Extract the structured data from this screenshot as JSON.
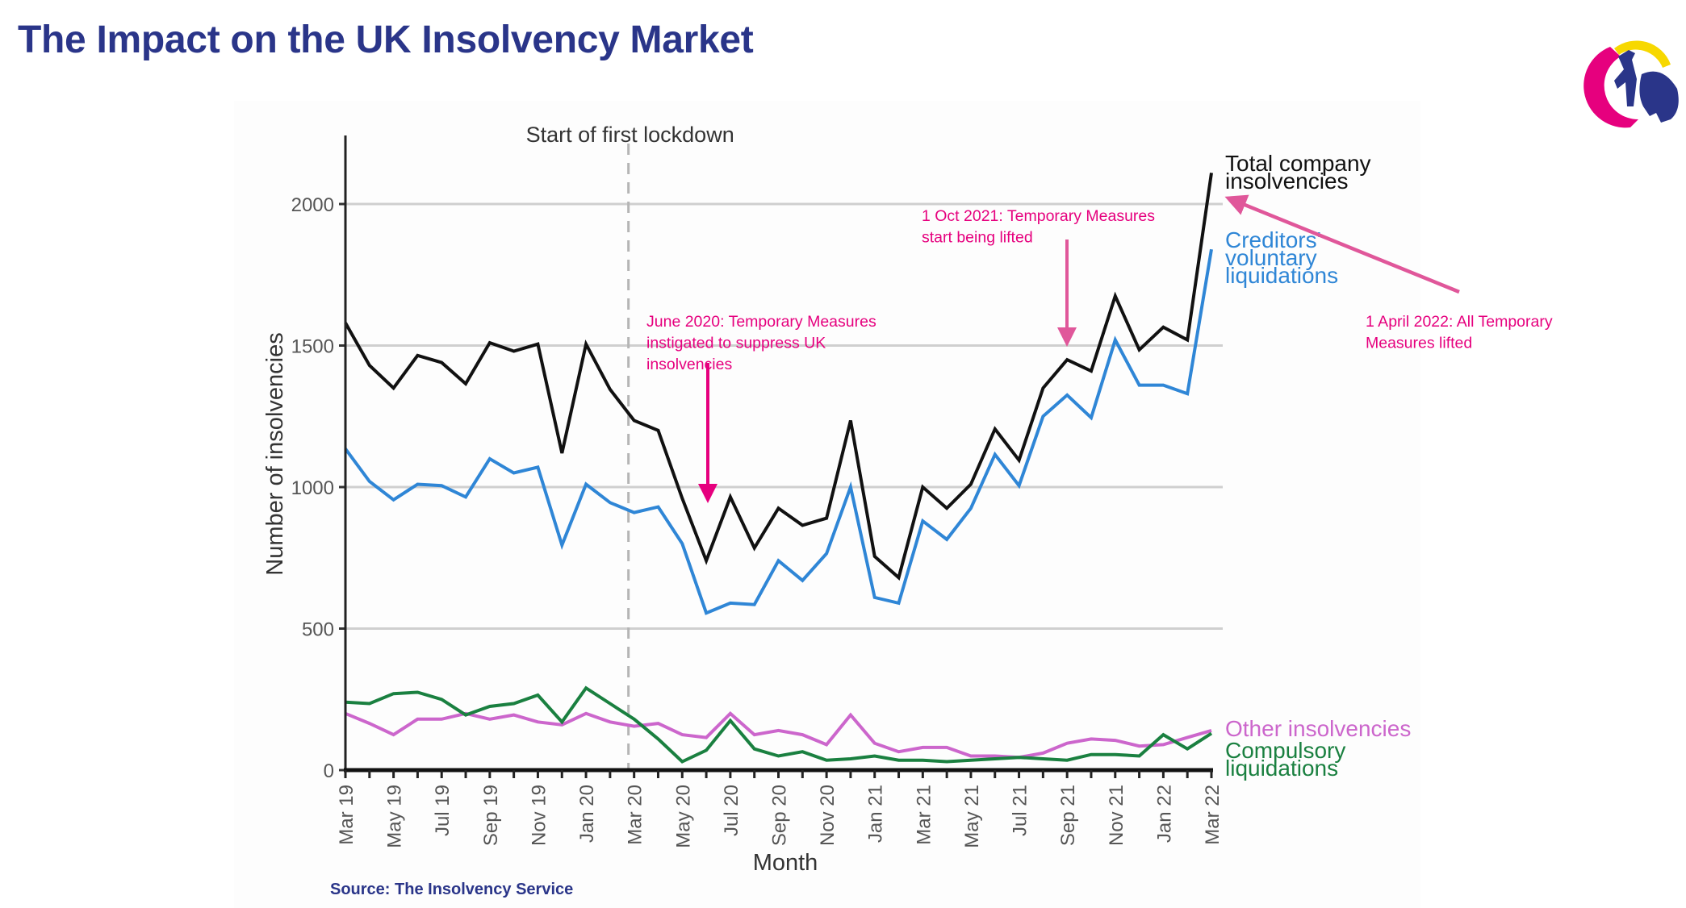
{
  "page": {
    "title": "The Impact on the UK Insolvency Market",
    "source": "Source: The Insolvency Service",
    "logo": "matador-and-bull-logo",
    "colors": {
      "title": "#2a3589",
      "annotation": "#e6007e",
      "annotation_arrow_light": "#e0579a"
    }
  },
  "chart_data": {
    "type": "line",
    "title": "",
    "xlabel": "Month",
    "ylabel": "Number of insolvencies",
    "ylim": [
      0,
      2250
    ],
    "yticks": [
      0,
      500,
      1000,
      1500,
      2000
    ],
    "grid": true,
    "x": [
      "Mar 19",
      "Apr 19",
      "May 19",
      "Jun 19",
      "Jul 19",
      "Aug 19",
      "Sep 19",
      "Oct 19",
      "Nov 19",
      "Dec 19",
      "Jan 20",
      "Feb 20",
      "Mar 20",
      "Apr 20",
      "May 20",
      "Jun 20",
      "Jul 20",
      "Aug 20",
      "Sep 20",
      "Oct 20",
      "Nov 20",
      "Dec 20",
      "Jan 21",
      "Feb 21",
      "Mar 21",
      "Apr 21",
      "May 21",
      "Jun 21",
      "Jul 21",
      "Aug 21",
      "Sep 21",
      "Oct 21",
      "Nov 21",
      "Dec 21",
      "Jan 22",
      "Feb 22",
      "Mar 22"
    ],
    "x_tick_labels": [
      "Mar 19",
      "May 19",
      "Jul 19",
      "Sep 19",
      "Nov 19",
      "Jan 20",
      "Mar 20",
      "May 20",
      "Jul 20",
      "Sep 20",
      "Nov 20",
      "Jan 21",
      "Mar 21",
      "May 21",
      "Jul 21",
      "Sep 21",
      "Nov 21",
      "Jan 22",
      "Mar 22"
    ],
    "series": [
      {
        "name": "Total company insolvencies",
        "label_lines": [
          "Total company",
          "insolvencies"
        ],
        "color": "#111111",
        "values": [
          1580,
          1430,
          1350,
          1465,
          1440,
          1365,
          1510,
          1480,
          1505,
          1120,
          1505,
          1345,
          1235,
          1200,
          960,
          740,
          965,
          785,
          925,
          865,
          890,
          1235,
          755,
          680,
          1000,
          925,
          1010,
          1205,
          1095,
          1350,
          1450,
          1410,
          1675,
          1485,
          1565,
          1520,
          2110
        ]
      },
      {
        "name": "Creditors' voluntary liquidations",
        "label_lines": [
          "Creditors'",
          "voluntary",
          "liquidations"
        ],
        "color": "#2f86d6",
        "values": [
          1135,
          1020,
          955,
          1010,
          1005,
          965,
          1100,
          1050,
          1070,
          795,
          1010,
          945,
          910,
          930,
          800,
          555,
          590,
          585,
          740,
          670,
          765,
          1000,
          610,
          590,
          880,
          815,
          925,
          1115,
          1005,
          1250,
          1325,
          1245,
          1520,
          1360,
          1360,
          1330,
          1840
        ]
      },
      {
        "name": "Other insolvencies",
        "label_lines": [
          "Other insolvencies"
        ],
        "color": "#cc66cc",
        "values": [
          200,
          165,
          125,
          180,
          180,
          200,
          180,
          195,
          170,
          160,
          200,
          170,
          155,
          165,
          125,
          115,
          200,
          125,
          140,
          125,
          90,
          195,
          95,
          65,
          80,
          80,
          50,
          50,
          45,
          60,
          95,
          110,
          105,
          85,
          90,
          115,
          140
        ]
      },
      {
        "name": "Compulsory liquidations",
        "label_lines": [
          "Compulsory",
          "liquidations"
        ],
        "color": "#1a8040",
        "values": [
          240,
          235,
          270,
          275,
          250,
          195,
          225,
          235,
          265,
          170,
          290,
          235,
          180,
          110,
          30,
          70,
          175,
          75,
          50,
          65,
          35,
          40,
          50,
          35,
          35,
          30,
          35,
          40,
          45,
          40,
          35,
          55,
          55,
          50,
          125,
          75,
          130
        ]
      }
    ],
    "reference_lines": [
      {
        "x": "Mar 20",
        "label": "Start of first lockdown",
        "style": "dashed",
        "color": "#aaaaaa"
      }
    ],
    "annotations": [
      {
        "id": "june-2020",
        "lines": [
          "June 2020: Temporary Measures",
          "instigated to suppress UK",
          "insolvencies"
        ],
        "points_to": "Jun 20",
        "color": "#e6007e"
      },
      {
        "id": "oct-2021",
        "lines": [
          "1 Oct 2021: Temporary Measures",
          "start being lifted"
        ],
        "points_to": "Oct 21",
        "color": "#e6007e"
      },
      {
        "id": "apr-2022",
        "lines": [
          "1 April 2022: All Temporary",
          "Measures lifted"
        ],
        "points_to": "Mar 22",
        "color": "#e6007e"
      }
    ],
    "legend": "inline-right-end-of-lines"
  }
}
